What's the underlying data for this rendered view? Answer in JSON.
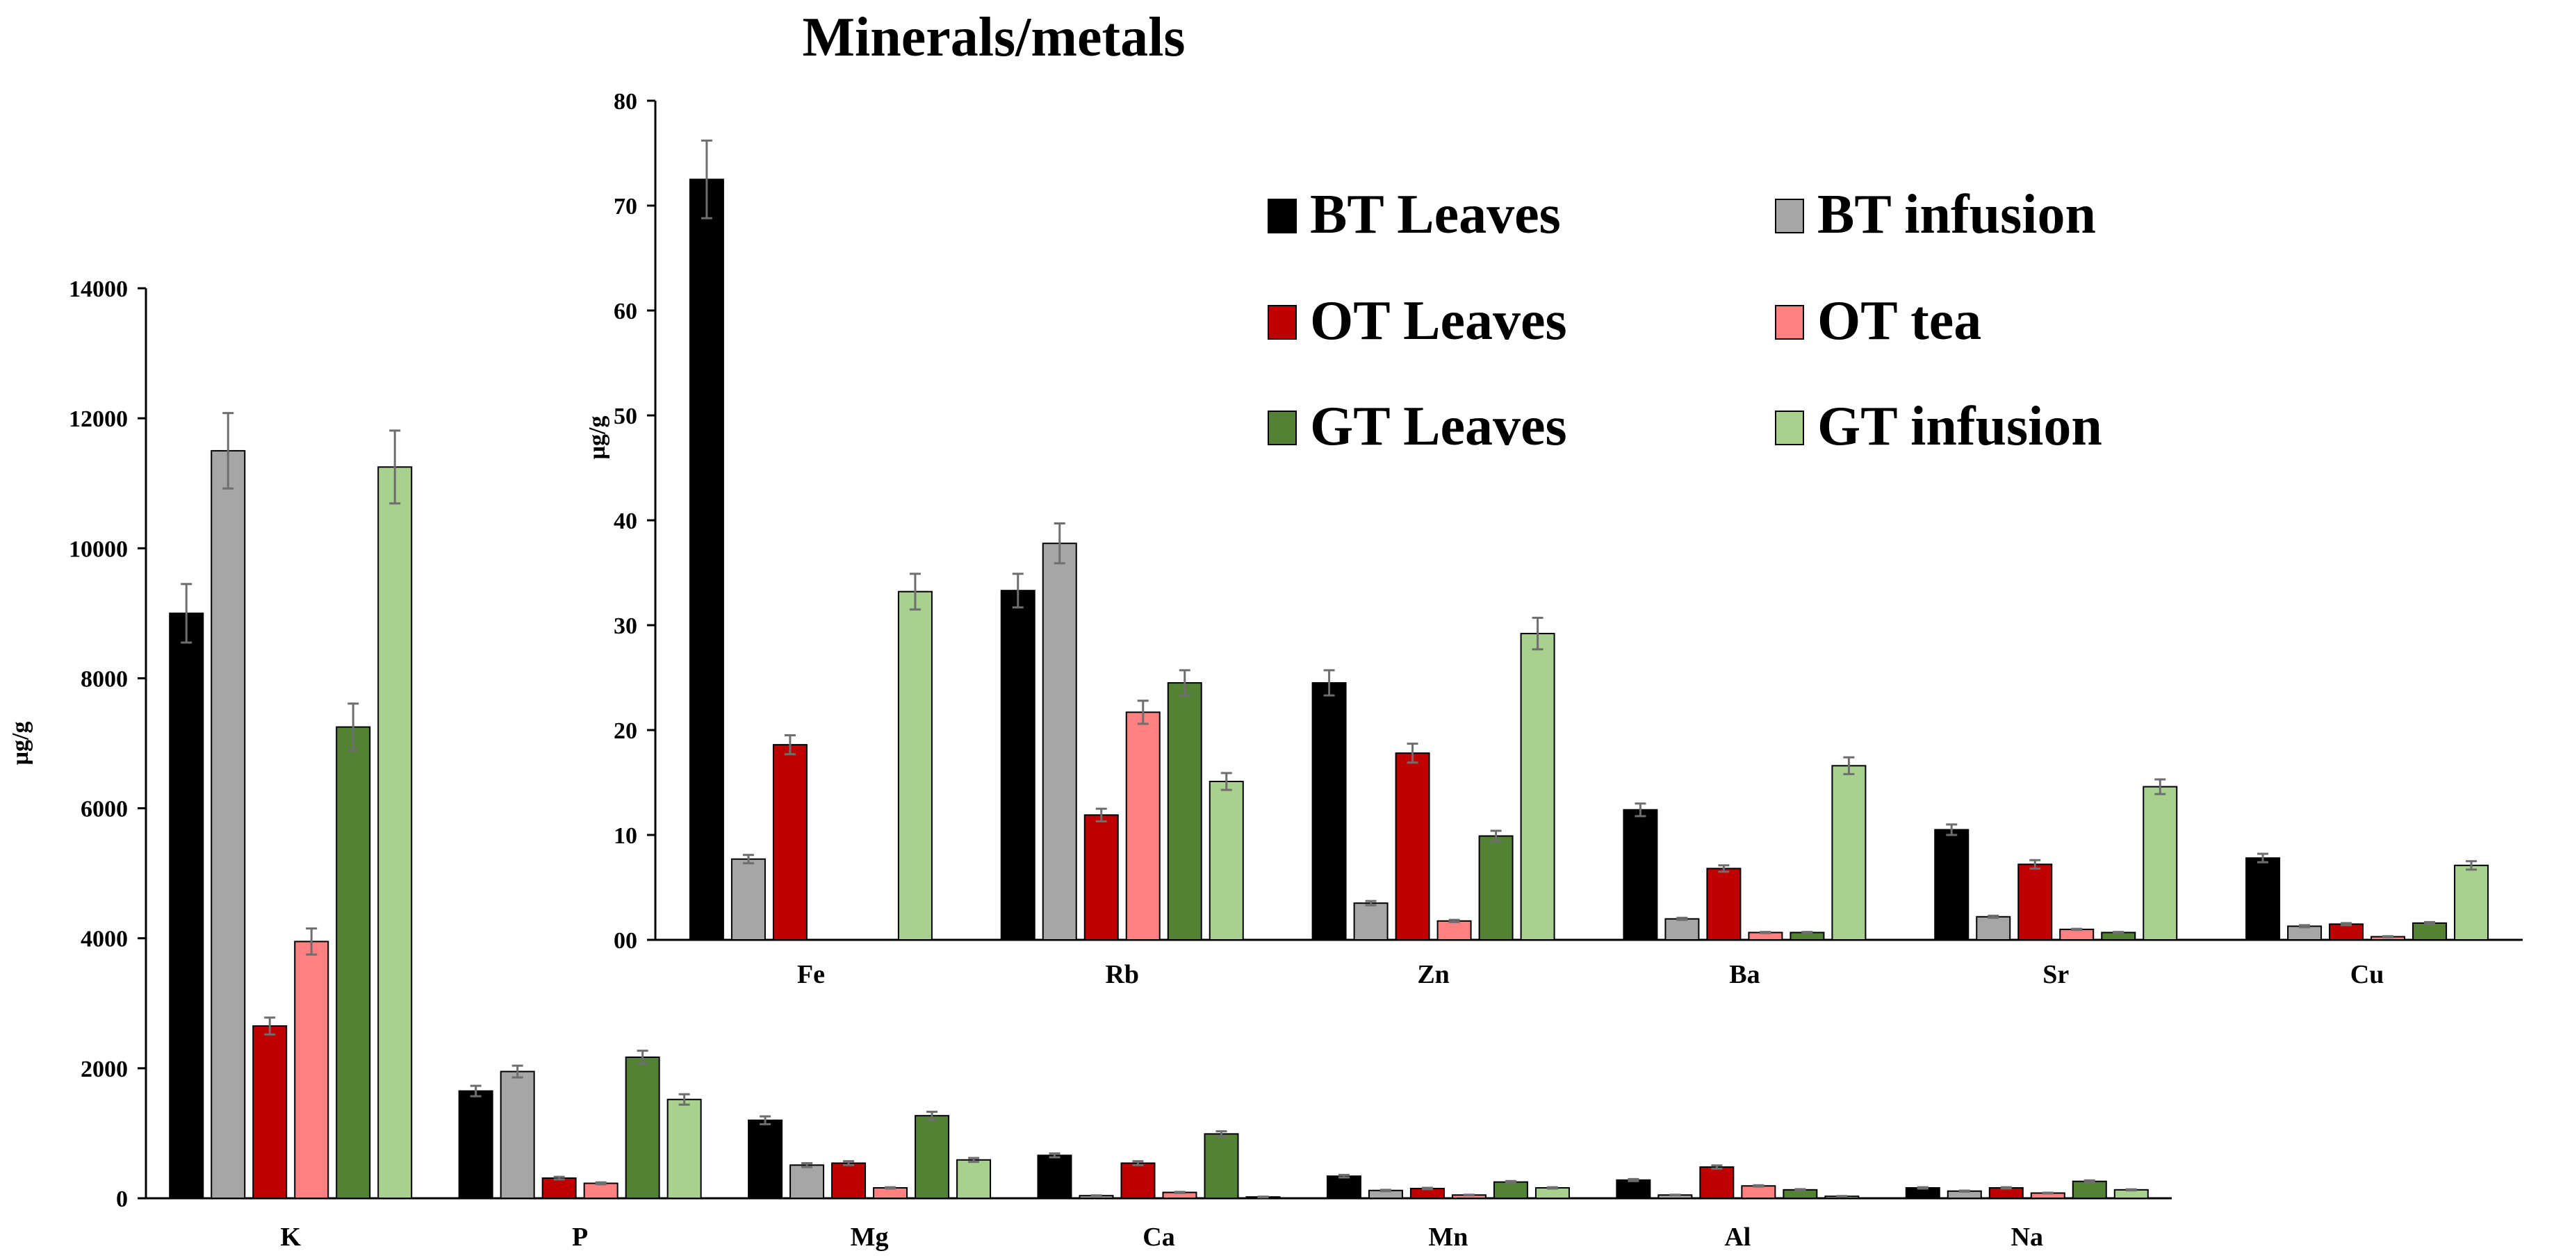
{
  "title": "Minerals/metals",
  "series_styles": [
    {
      "name": "BT Leaves",
      "color": "#000000"
    },
    {
      "name": "BT infusion",
      "color": "#a6a6a6"
    },
    {
      "name": "OT Leaves",
      "color": "#c00000"
    },
    {
      "name": "OT tea",
      "color": "#ff8080"
    },
    {
      "name": "GT Leaves",
      "color": "#548235"
    },
    {
      "name": "GT infusion",
      "color": "#a9d18e"
    }
  ],
  "chart_data": [
    {
      "type": "bar",
      "title": "Minerals/metals",
      "xlabel": "",
      "ylabel": "µg/g",
      "ylim": [
        0,
        14000
      ],
      "yticks": [
        "0",
        "2000",
        "4000",
        "6000",
        "8000",
        "10000",
        "12000",
        "14000"
      ],
      "categories": [
        "K",
        "P",
        "Mg",
        "Ca",
        "Mn",
        "Al",
        "Na"
      ],
      "series": [
        {
          "name": "BT Leaves",
          "values": [
            9000,
            1650,
            1200,
            660,
            340,
            280,
            160
          ],
          "errors": [
            450,
            80,
            60,
            30,
            20,
            15,
            10
          ]
        },
        {
          "name": "BT infusion",
          "values": [
            11500,
            1950,
            510,
            40,
            120,
            50,
            110
          ],
          "errors": [
            580,
            90,
            30,
            5,
            10,
            5,
            8
          ]
        },
        {
          "name": "OT Leaves",
          "values": [
            2650,
            310,
            540,
            540,
            150,
            480,
            160
          ],
          "errors": [
            130,
            20,
            30,
            30,
            10,
            25,
            10
          ]
        },
        {
          "name": "OT tea",
          "values": [
            3950,
            230,
            160,
            90,
            50,
            190,
            80
          ],
          "errors": [
            200,
            15,
            10,
            8,
            5,
            10,
            5
          ]
        },
        {
          "name": "GT Leaves",
          "values": [
            7250,
            2170,
            1270,
            990,
            250,
            130,
            260
          ],
          "errors": [
            360,
            100,
            60,
            40,
            15,
            10,
            15
          ]
        },
        {
          "name": "GT infusion",
          "values": [
            11250,
            1520,
            590,
            20,
            160,
            30,
            130
          ],
          "errors": [
            560,
            80,
            30,
            5,
            10,
            5,
            8
          ]
        }
      ]
    },
    {
      "type": "bar",
      "title": "",
      "xlabel": "",
      "ylabel": "µg/g",
      "ylim": [
        0,
        80
      ],
      "yticks": [
        "00",
        "10",
        "20",
        "30",
        "40",
        "50",
        "60",
        "70",
        "80"
      ],
      "categories": [
        "Fe",
        "Rb",
        "Zn",
        "Ba",
        "Sr",
        "Cu"
      ],
      "legend": "top-right",
      "series": [
        {
          "name": "BT Leaves",
          "values": [
            72.5,
            33.3,
            24.5,
            12.4,
            10.5,
            7.8
          ],
          "errors": [
            3.7,
            1.6,
            1.2,
            0.6,
            0.5,
            0.4
          ]
        },
        {
          "name": "BT infusion",
          "values": [
            7.7,
            37.8,
            3.5,
            2.0,
            2.2,
            1.3
          ],
          "errors": [
            0.4,
            1.9,
            0.2,
            0.1,
            0.1,
            0.1
          ]
        },
        {
          "name": "OT Leaves",
          "values": [
            18.6,
            11.9,
            17.8,
            6.8,
            7.2,
            1.5
          ],
          "errors": [
            0.9,
            0.6,
            0.9,
            0.3,
            0.4,
            0.1
          ]
        },
        {
          "name": "OT tea",
          "values": [
            0,
            21.7,
            1.8,
            0.7,
            1.0,
            0.3
          ],
          "errors": [
            0,
            1.1,
            0.1,
            0.05,
            0.05,
            0.05
          ]
        },
        {
          "name": "GT Leaves",
          "values": [
            0,
            24.5,
            9.9,
            0.7,
            0.7,
            1.6
          ],
          "errors": [
            0,
            1.2,
            0.5,
            0.05,
            0.05,
            0.1
          ]
        },
        {
          "name": "GT infusion",
          "values": [
            33.2,
            15.1,
            29.2,
            16.6,
            14.6,
            7.1
          ],
          "errors": [
            1.7,
            0.8,
            1.5,
            0.8,
            0.7,
            0.4
          ]
        }
      ]
    }
  ]
}
